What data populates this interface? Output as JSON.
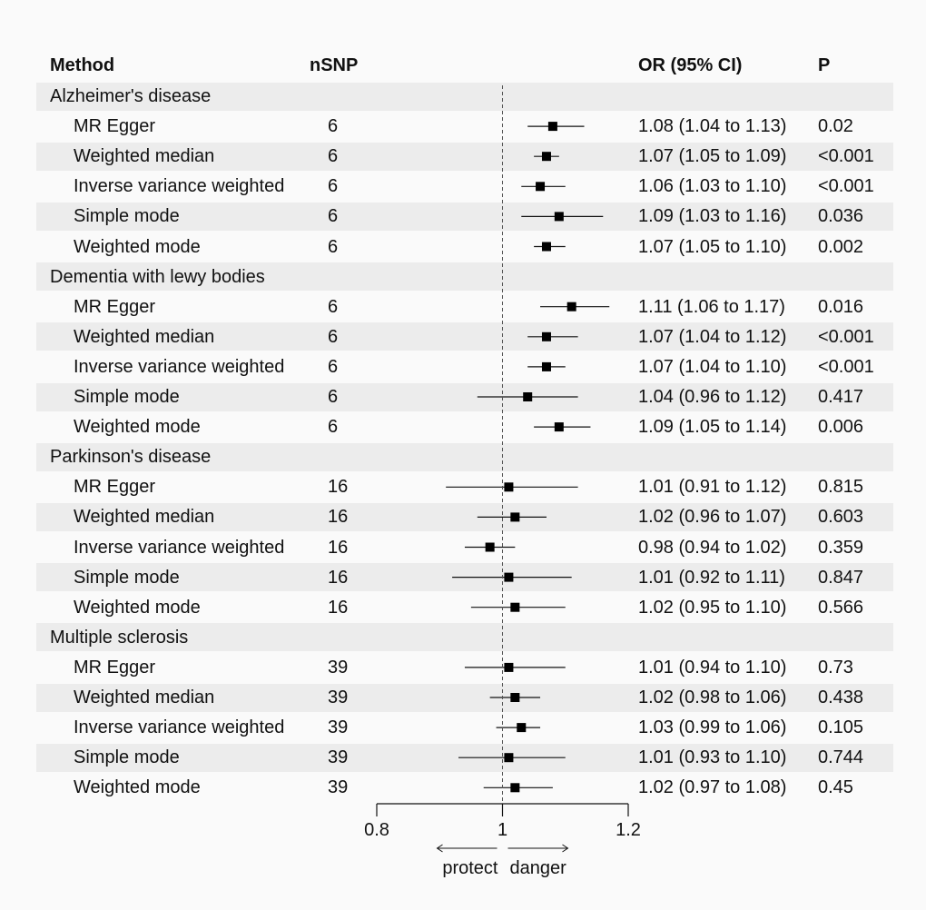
{
  "headers": {
    "method": "Method",
    "nsnp": "nSNP",
    "or": "OR (95% CI)",
    "p": "P"
  },
  "chart_data": {
    "type": "forest",
    "xlim": [
      0.8,
      1.2
    ],
    "reference_line": 1,
    "ticks": [
      {
        "value": 0.8,
        "label": "0.8"
      },
      {
        "value": 1,
        "label": "1"
      },
      {
        "value": 1.2,
        "label": "1.2"
      }
    ],
    "direction_labels": {
      "left": "protect",
      "right": "danger"
    },
    "groups": [
      {
        "name": "Alzheimer's disease",
        "rows": [
          {
            "method": "MR Egger",
            "nsnp": "6",
            "or": 1.08,
            "lo": 1.04,
            "hi": 1.13,
            "or_text": "1.08 (1.04 to 1.13)",
            "p": "0.02"
          },
          {
            "method": "Weighted median",
            "nsnp": "6",
            "or": 1.07,
            "lo": 1.05,
            "hi": 1.09,
            "or_text": "1.07 (1.05 to 1.09)",
            "p": "<0.001"
          },
          {
            "method": "Inverse variance weighted",
            "nsnp": "6",
            "or": 1.06,
            "lo": 1.03,
            "hi": 1.1,
            "or_text": "1.06 (1.03 to 1.10)",
            "p": "<0.001"
          },
          {
            "method": "Simple mode",
            "nsnp": "6",
            "or": 1.09,
            "lo": 1.03,
            "hi": 1.16,
            "or_text": "1.09 (1.03 to 1.16)",
            "p": "0.036"
          },
          {
            "method": "Weighted mode",
            "nsnp": "6",
            "or": 1.07,
            "lo": 1.05,
            "hi": 1.1,
            "or_text": "1.07 (1.05 to 1.10)",
            "p": "0.002"
          }
        ]
      },
      {
        "name": "Dementia with lewy bodies",
        "rows": [
          {
            "method": "MR Egger",
            "nsnp": "6",
            "or": 1.11,
            "lo": 1.06,
            "hi": 1.17,
            "or_text": "1.11 (1.06 to 1.17)",
            "p": "0.016"
          },
          {
            "method": "Weighted median",
            "nsnp": "6",
            "or": 1.07,
            "lo": 1.04,
            "hi": 1.12,
            "or_text": "1.07 (1.04 to 1.12)",
            "p": "<0.001"
          },
          {
            "method": "Inverse variance weighted",
            "nsnp": "6",
            "or": 1.07,
            "lo": 1.04,
            "hi": 1.1,
            "or_text": "1.07 (1.04 to 1.10)",
            "p": "<0.001"
          },
          {
            "method": "Simple mode",
            "nsnp": "6",
            "or": 1.04,
            "lo": 0.96,
            "hi": 1.12,
            "or_text": "1.04 (0.96 to 1.12)",
            "p": "0.417"
          },
          {
            "method": "Weighted mode",
            "nsnp": "6",
            "or": 1.09,
            "lo": 1.05,
            "hi": 1.14,
            "or_text": "1.09 (1.05 to 1.14)",
            "p": "0.006"
          }
        ]
      },
      {
        "name": "Parkinson's disease",
        "rows": [
          {
            "method": "MR Egger",
            "nsnp": "16",
            "or": 1.01,
            "lo": 0.91,
            "hi": 1.12,
            "or_text": "1.01 (0.91 to 1.12)",
            "p": "0.815"
          },
          {
            "method": "Weighted median",
            "nsnp": "16",
            "or": 1.02,
            "lo": 0.96,
            "hi": 1.07,
            "or_text": "1.02 (0.96 to 1.07)",
            "p": "0.603"
          },
          {
            "method": "Inverse variance weighted",
            "nsnp": "16",
            "or": 0.98,
            "lo": 0.94,
            "hi": 1.02,
            "or_text": "0.98 (0.94 to 1.02)",
            "p": "0.359"
          },
          {
            "method": "Simple mode",
            "nsnp": "16",
            "or": 1.01,
            "lo": 0.92,
            "hi": 1.11,
            "or_text": "1.01 (0.92 to 1.11)",
            "p": "0.847"
          },
          {
            "method": "Weighted mode",
            "nsnp": "16",
            "or": 1.02,
            "lo": 0.95,
            "hi": 1.1,
            "or_text": "1.02 (0.95 to 1.10)",
            "p": "0.566"
          }
        ]
      },
      {
        "name": "Multiple sclerosis",
        "rows": [
          {
            "method": "MR Egger",
            "nsnp": "39",
            "or": 1.01,
            "lo": 0.94,
            "hi": 1.1,
            "or_text": "1.01 (0.94 to 1.10)",
            "p": "0.73"
          },
          {
            "method": "Weighted median",
            "nsnp": "39",
            "or": 1.02,
            "lo": 0.98,
            "hi": 1.06,
            "or_text": "1.02 (0.98 to 1.06)",
            "p": "0.438"
          },
          {
            "method": "Inverse variance weighted",
            "nsnp": "39",
            "or": 1.03,
            "lo": 0.99,
            "hi": 1.06,
            "or_text": "1.03 (0.99 to 1.06)",
            "p": "0.105"
          },
          {
            "method": "Simple mode",
            "nsnp": "39",
            "or": 1.01,
            "lo": 0.93,
            "hi": 1.1,
            "or_text": "1.01 (0.93 to 1.10)",
            "p": "0.744"
          },
          {
            "method": "Weighted mode",
            "nsnp": "39",
            "or": 1.02,
            "lo": 0.97,
            "hi": 1.08,
            "or_text": "1.02 (0.97 to 1.08)",
            "p": "0.45"
          }
        ]
      }
    ]
  }
}
